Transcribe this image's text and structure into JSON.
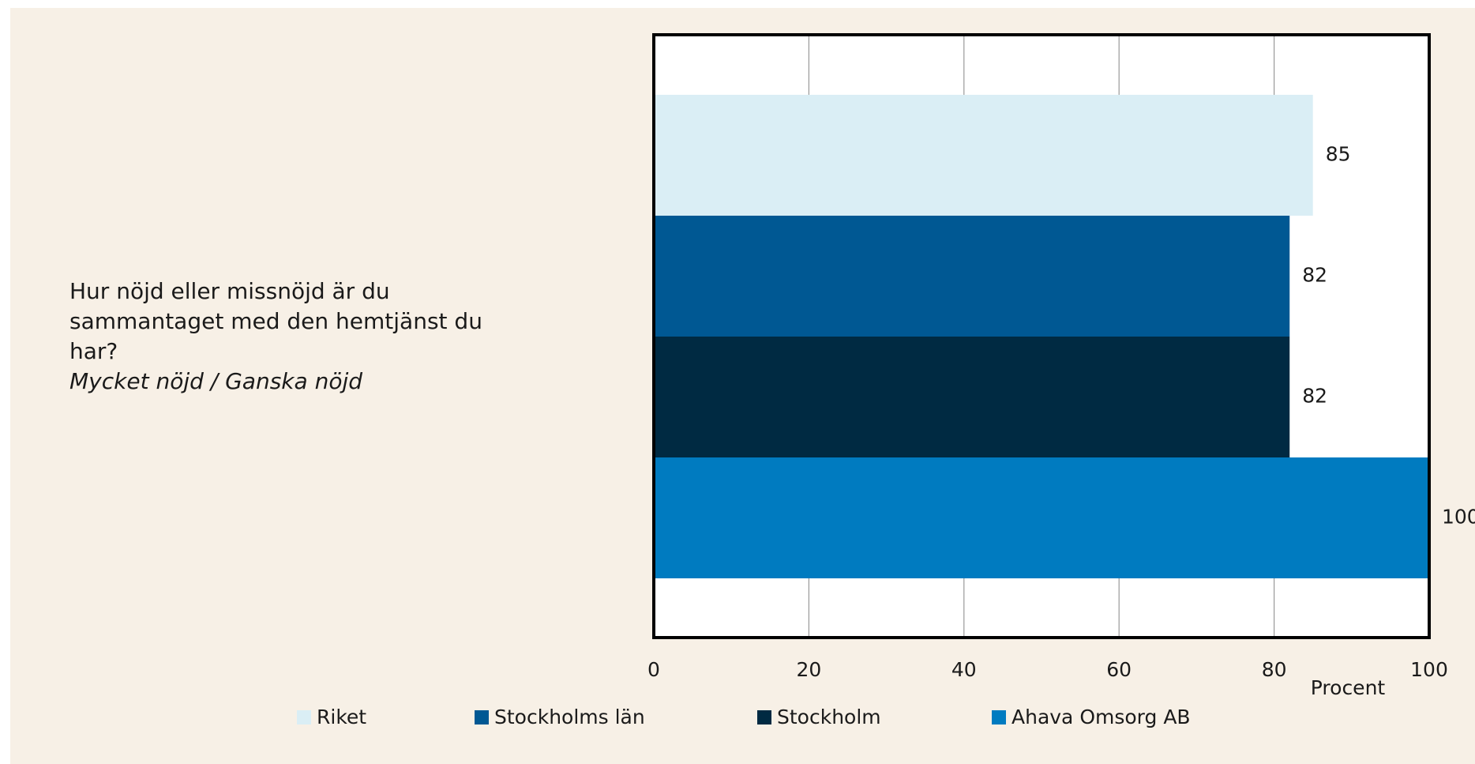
{
  "chart_data": {
    "type": "bar",
    "orientation": "horizontal",
    "categories": [
      "Hur nöjd eller missnöjd är du sammantaget med den hemtjänst du har?"
    ],
    "category_note": "Mycket nöjd / Ganska nöjd",
    "series": [
      {
        "name": "Riket",
        "color": "#daeef5",
        "values": [
          85
        ]
      },
      {
        "name": "Stockholms län",
        "color": "#005893",
        "values": [
          82
        ]
      },
      {
        "name": "Stockholm",
        "color": "#002a42",
        "values": [
          82
        ]
      },
      {
        "name": "Ahava Omsorg AB",
        "color": "#007bc0",
        "values": [
          100
        ]
      }
    ],
    "xlabel": "Procent",
    "xlim": [
      0,
      100
    ],
    "xticks": [
      0,
      20,
      40,
      60,
      80,
      100
    ],
    "grid": true,
    "legend": "bottom"
  }
}
